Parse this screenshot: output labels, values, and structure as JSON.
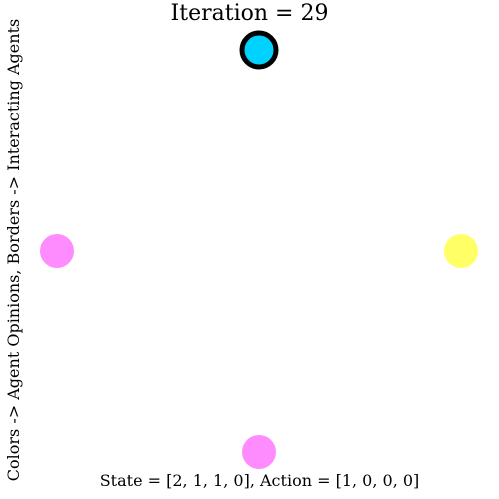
{
  "chart_data": {
    "type": "scatter",
    "title": "Iteration = 29",
    "ylabel": "Colors -> Agent Opinions, Borders -> Interacting Agents",
    "xlabel": "State = [2, 1, 1, 0], Action = [1, 0, 0, 0]",
    "grid": false,
    "xlim": [
      -1.05,
      1.05
    ],
    "ylim": [
      -1.05,
      1.05
    ],
    "points": [
      {
        "agent": 0,
        "x": 0,
        "y": 1,
        "color": "#00d2ff",
        "interacting": true
      },
      {
        "agent": 1,
        "x": -1,
        "y": 0,
        "color": "#ff8cff",
        "interacting": false
      },
      {
        "agent": 2,
        "x": 0,
        "y": -1,
        "color": "#ff8cff",
        "interacting": false
      },
      {
        "agent": 3,
        "x": 1,
        "y": 0,
        "color": "#ffff66",
        "interacting": false
      }
    ],
    "colors": {
      "border": "#000000"
    }
  }
}
